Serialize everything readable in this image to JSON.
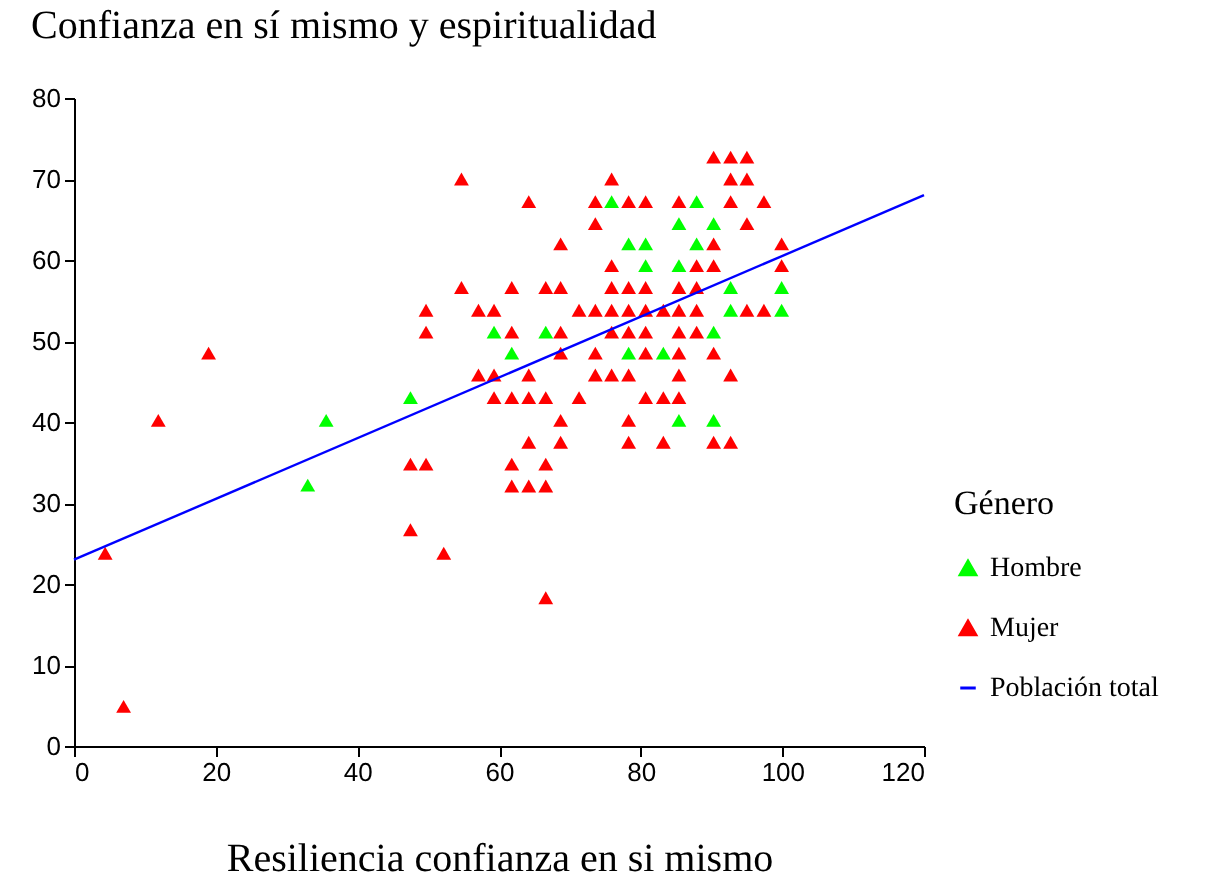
{
  "chart_data": {
    "type": "scatter",
    "title": "Confianza en sí mismo y espiritualidad",
    "xlabel": "Resiliencia confianza en si mismo",
    "legend_title": "Género",
    "xlim": [
      0,
      120
    ],
    "xticks": [
      0,
      20,
      40,
      60,
      80,
      100,
      120
    ],
    "ylim": [
      0,
      80
    ],
    "yticks": [
      0,
      10,
      20,
      30,
      40,
      50,
      60,
      70,
      80
    ],
    "grid": false,
    "legend": "right",
    "marker": "triangle",
    "series": [
      {
        "name": "Hombre",
        "color": "#00ff00",
        "x": [
          33.0,
          35.6,
          47.5,
          59.3,
          66.6,
          61.8,
          78.3,
          75.9,
          78.3,
          85.4,
          87.9,
          90.3,
          80.7,
          87.9,
          80.7,
          85.4,
          92.7,
          99.9,
          92.7,
          99.9,
          90.3,
          83.2,
          85.4,
          90.3
        ],
        "values": [
          32.2,
          40.2,
          43.0,
          51.1,
          51.1,
          48.5,
          48.5,
          67.2,
          62.0,
          64.5,
          67.2,
          64.5,
          62.0,
          62.0,
          59.3,
          59.3,
          56.6,
          56.6,
          53.8,
          53.8,
          51.1,
          48.5,
          40.2,
          40.2
        ]
      },
      {
        "name": "Mujer",
        "color": "#ff0000",
        "x": [
          4.4,
          7.0,
          11.9,
          19.0,
          54.7,
          75.9,
          64.2,
          73.6,
          78.3,
          73.6,
          68.7,
          75.9,
          54.7,
          61.8,
          66.6,
          68.7,
          75.9,
          78.3,
          49.7,
          57.1,
          59.3,
          71.3,
          73.6,
          75.9,
          78.3,
          49.7,
          61.8,
          68.7,
          75.9,
          78.3,
          68.7,
          73.6,
          57.1,
          59.3,
          64.2,
          73.6,
          75.9,
          78.3,
          59.3,
          61.8,
          64.2,
          66.6,
          71.3,
          68.7,
          78.3,
          64.2,
          68.7,
          78.3,
          47.5,
          49.7,
          61.8,
          66.6,
          61.8,
          64.2,
          66.6,
          47.5,
          52.2,
          66.6,
          90.3,
          92.7,
          95.0,
          92.7,
          95.0,
          80.7,
          85.4,
          92.7,
          97.4,
          95.0,
          90.3,
          99.9,
          87.9,
          90.3,
          99.9,
          80.7,
          85.4,
          87.9,
          80.7,
          83.2,
          85.4,
          87.9,
          95.0,
          97.4,
          80.7,
          85.4,
          87.9,
          80.7,
          85.4,
          90.3,
          85.4,
          92.7,
          80.7,
          83.2,
          85.4,
          83.2,
          90.3,
          92.7
        ],
        "values": [
          23.8,
          4.9,
          40.2,
          48.5,
          70.0,
          70.0,
          67.2,
          67.2,
          67.2,
          64.5,
          62.0,
          59.3,
          56.6,
          56.6,
          56.6,
          56.6,
          56.6,
          56.6,
          53.8,
          53.8,
          53.8,
          53.8,
          53.8,
          53.8,
          53.8,
          51.1,
          51.1,
          51.1,
          51.1,
          51.1,
          48.5,
          48.5,
          45.8,
          45.8,
          45.8,
          45.8,
          45.8,
          45.8,
          43.0,
          43.0,
          43.0,
          43.0,
          43.0,
          40.2,
          40.2,
          37.5,
          37.5,
          37.5,
          34.8,
          34.8,
          34.8,
          34.8,
          32.1,
          32.1,
          32.1,
          26.7,
          23.8,
          18.3,
          72.7,
          72.7,
          72.7,
          70.0,
          70.0,
          67.2,
          67.2,
          67.2,
          67.2,
          64.5,
          62.0,
          62.0,
          59.3,
          59.3,
          59.3,
          56.6,
          56.6,
          56.6,
          53.8,
          53.8,
          53.8,
          53.8,
          53.8,
          53.8,
          51.1,
          51.1,
          51.1,
          48.5,
          48.5,
          48.5,
          45.8,
          45.8,
          43.0,
          43.0,
          43.0,
          37.5,
          37.5,
          37.5
        ]
      },
      {
        "name": "Población total",
        "type": "line",
        "marker": "none",
        "color": "#0000ff",
        "x": [
          0,
          120
        ],
        "values": [
          23,
          68
        ]
      }
    ]
  }
}
